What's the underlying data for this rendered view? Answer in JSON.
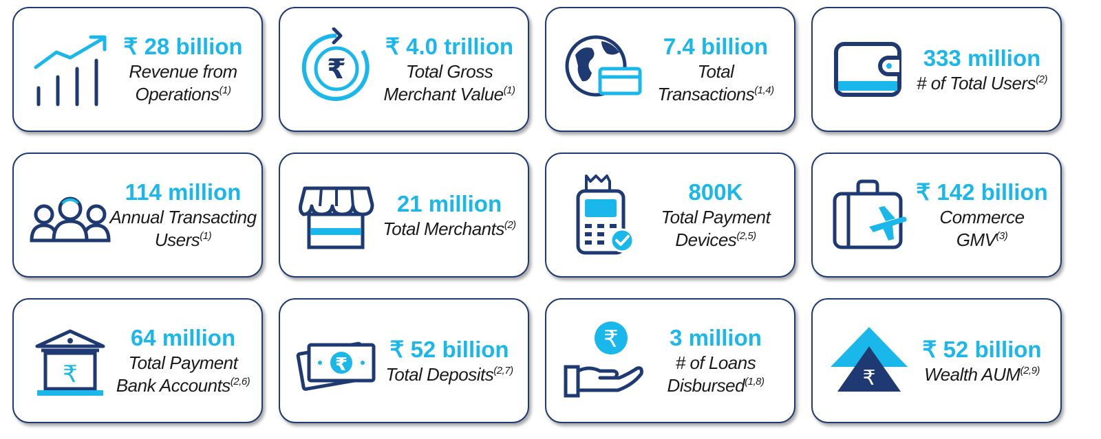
{
  "cards": [
    {
      "value": "₹ 28 billion",
      "line1": "Revenue from",
      "line2": "Operations",
      "sup": "(1)",
      "icon": "growth-chart-icon"
    },
    {
      "value": "₹ 4.0 trillion",
      "line1": "Total Gross",
      "line2": "Merchant Value",
      "sup": "(1)",
      "icon": "rupee-cycle-icon"
    },
    {
      "value": "7.4 billion",
      "line1": "Total",
      "line2": "Transactions",
      "sup": "(1,4)",
      "icon": "globe-card-icon"
    },
    {
      "value": "333 million",
      "line1": "",
      "line2": "# of Total Users",
      "sup": "(2)",
      "icon": "wallet-icon"
    },
    {
      "value": "114 million",
      "line1": "Annual Transacting",
      "line2": "Users",
      "sup": "(1)",
      "icon": "users-group-icon"
    },
    {
      "value": "21 million",
      "line1": "",
      "line2": "Total Merchants",
      "sup": "(2)",
      "icon": "storefront-icon"
    },
    {
      "value": "800K",
      "line1": "Total Payment",
      "line2": "Devices",
      "sup": "(2,5)",
      "icon": "payment-device-icon"
    },
    {
      "value": "₹ 142 billion",
      "line1": "Commerce",
      "line2": "GMV",
      "sup": "(3)",
      "icon": "travel-luggage-icon"
    },
    {
      "value": "64 million",
      "line1": "Total Payment",
      "line2": "Bank Accounts",
      "sup": "(2,6)",
      "icon": "bank-icon"
    },
    {
      "value": "₹ 52 billion",
      "line1": "",
      "line2": "Total Deposits",
      "sup": "(2,7)",
      "icon": "cash-notes-icon"
    },
    {
      "value": "3 million",
      "line1": "# of Loans",
      "line2": "Disbursed",
      "sup": "(1,8)",
      "icon": "loan-hand-icon"
    },
    {
      "value": "₹ 52 billion",
      "line1": "",
      "line2": "Wealth AUM",
      "sup": "(2,9)",
      "icon": "wealth-pyramid-icon"
    }
  ],
  "colors": {
    "accent": "#1ab7ea",
    "navy": "#1f3a73",
    "text": "#1a1a1a"
  }
}
